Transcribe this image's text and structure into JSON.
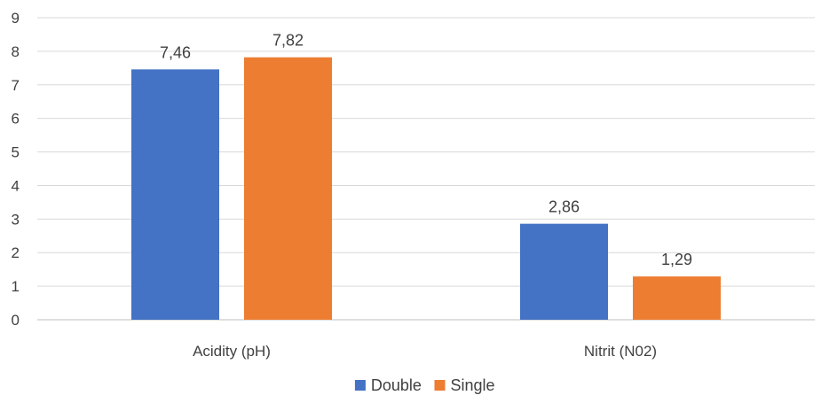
{
  "chart_data": {
    "type": "bar",
    "title": "",
    "xlabel": "",
    "ylabel": "",
    "categories": [
      "Acidity (pH)",
      "Nitrit (N02)"
    ],
    "series": [
      {
        "name": "Double",
        "values": [
          7.46,
          2.86
        ],
        "labels": [
          "7,46",
          "2,86"
        ],
        "color": "#4472C4"
      },
      {
        "name": "Single",
        "values": [
          7.82,
          1.29
        ],
        "labels": [
          "7,82",
          "1,29"
        ],
        "color": "#ED7D31"
      }
    ],
    "ylim": [
      0,
      9
    ],
    "yticks": [
      0,
      1,
      2,
      3,
      4,
      5,
      6,
      7,
      8,
      9
    ],
    "grid": true,
    "legend": "bottom"
  }
}
